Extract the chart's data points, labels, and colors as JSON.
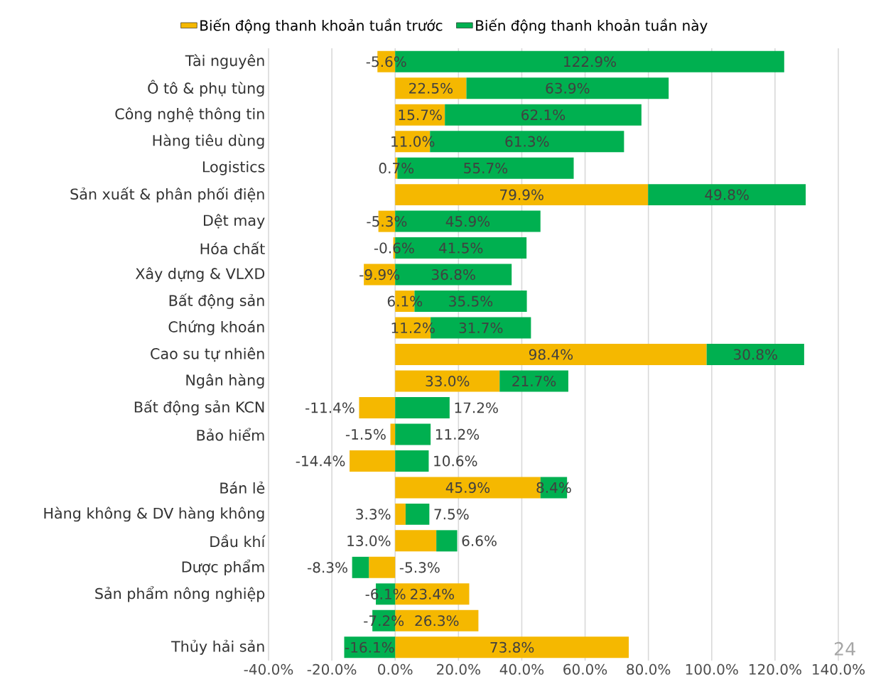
{
  "chart_data": {
    "type": "bar",
    "orientation": "horizontal",
    "stacked": true,
    "categories": [
      "Tài nguyên",
      "Ô tô & phụ tùng",
      "Công nghệ thông tin",
      "Hàng tiêu dùng",
      "Logistics",
      "Sản xuất & phân phối điện",
      "Dệt may",
      "Hóa chất",
      "Xây dựng & VLXD",
      "Bất động sản",
      "Chứng khoán",
      "Cao su tự nhiên",
      "Ngân hàng",
      "Bất động sản KCN",
      "Bảo hiểm",
      null,
      "Bán lẻ",
      "Hàng không & DV hàng không",
      "Dầu khí",
      "Dược phẩm",
      "Sản phẩm nông nghiệp",
      null,
      "Thủy hải sản"
    ],
    "series": [
      {
        "name": "Biến động thanh khoản tuần trước",
        "color": "#f5b800",
        "values": [
          -5.6,
          22.5,
          15.7,
          11.0,
          0.7,
          79.9,
          -5.3,
          -0.6,
          -9.9,
          6.1,
          11.2,
          98.4,
          33.0,
          -11.4,
          -1.5,
          -14.4,
          45.9,
          3.3,
          13.0,
          -8.3,
          23.4,
          26.3,
          73.8
        ],
        "value_labels": [
          "-5.6%",
          "22.5%",
          "15.7%",
          "11.0%",
          "0.7%",
          "79.9%",
          "-5.3%",
          "-0.6%",
          "-9.9%",
          "6.1%",
          "11.2%",
          "98.4%",
          "33.0%",
          "-11.4%",
          "-1.5%",
          "-14.4%",
          "45.9%",
          "3.3%",
          "13.0%",
          "-8.3%",
          "23.4%",
          "26.3%",
          "73.8%"
        ]
      },
      {
        "name": "Biến động thanh khoản tuần này",
        "color": "#00b050",
        "values": [
          122.9,
          63.9,
          62.1,
          61.3,
          55.7,
          49.8,
          45.9,
          41.5,
          36.8,
          35.5,
          31.7,
          30.8,
          21.7,
          17.2,
          11.2,
          10.6,
          8.4,
          7.5,
          6.6,
          -5.3,
          -6.1,
          -7.2,
          -16.1
        ],
        "value_labels": [
          "122.9%",
          "63.9%",
          "62.1%",
          "61.3%",
          "55.7%",
          "49.8%",
          "45.9%",
          "41.5%",
          "36.8%",
          "35.5%",
          "31.7%",
          "30.8%",
          "21.7%",
          "17.2%",
          "11.2%",
          "10.6%",
          "8.4%",
          "7.5%",
          "6.6%",
          "-5.3%",
          "-6.1%",
          "-7.2%",
          "-16.1%"
        ]
      }
    ],
    "xlim": [
      -40,
      140
    ],
    "xticks": [
      {
        "value": -40,
        "label": "-40.0%"
      },
      {
        "value": -20,
        "label": "-20.0%"
      },
      {
        "value": 0,
        "label": "0.0%"
      },
      {
        "value": 20,
        "label": "20.0%"
      },
      {
        "value": 40,
        "label": "40.0%"
      },
      {
        "value": 60,
        "label": "60.0%"
      },
      {
        "value": 80,
        "label": "80.0%"
      },
      {
        "value": 100,
        "label": "100.0%"
      },
      {
        "value": 120,
        "label": "120.0%"
      },
      {
        "value": 140,
        "label": "140.0%"
      }
    ],
    "grid": "x",
    "legend": "top",
    "annotations": [
      "24"
    ]
  }
}
